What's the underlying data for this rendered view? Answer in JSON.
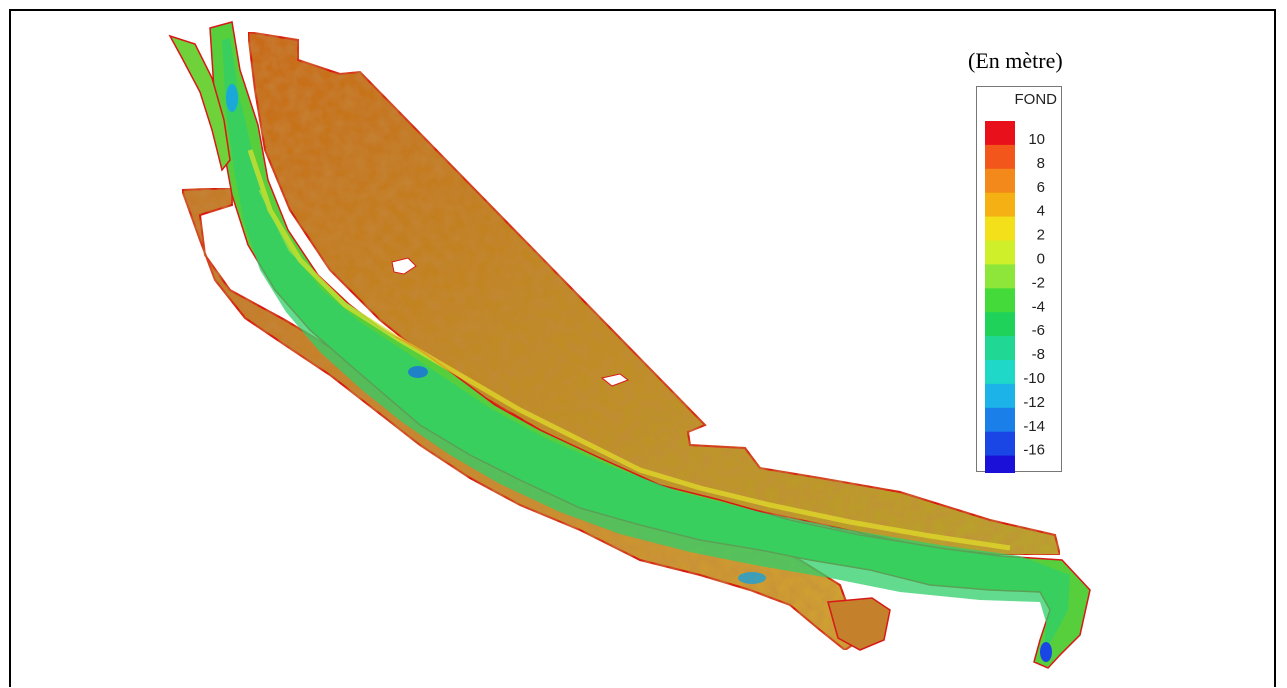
{
  "legend": {
    "unit": "(En mètre)",
    "title": "FOND",
    "ticks": [
      "10",
      "8",
      "6",
      "4",
      "2",
      "0",
      "-2",
      "-4",
      "-6",
      "-8",
      "-10",
      "-12",
      "-14",
      "-16"
    ],
    "colors": [
      "#e8101a",
      "#f2561a",
      "#f2891a",
      "#f5b014",
      "#f3e01a",
      "#cfef2a",
      "#8fe63a",
      "#44db3a",
      "#1fd35a",
      "#20d894",
      "#20d8c8",
      "#1cb4e8",
      "#1a7fe8",
      "#1a46e6",
      "#1a10d8"
    ]
  },
  "map": {
    "colors": {
      "high": "#c97a1e",
      "plateau": "#b8a030",
      "mid": "#d8d82a",
      "low": "#4fcf3a",
      "channel": "#2cc0a0",
      "deep": "#1a6ee0",
      "outline": "#d81818"
    }
  }
}
